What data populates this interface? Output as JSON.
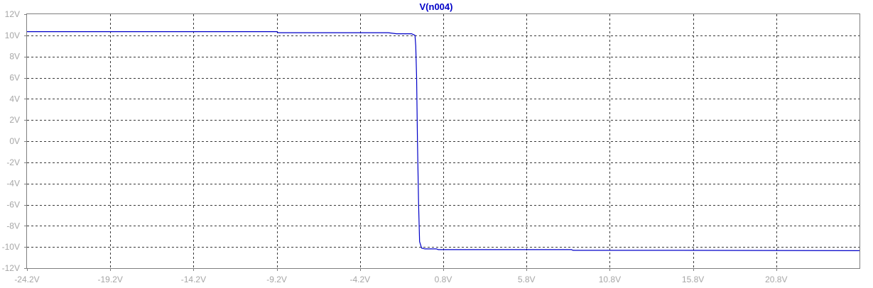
{
  "chart_data": {
    "type": "line",
    "title": "V(n004)",
    "xlabel": "",
    "ylabel": "",
    "xlim": [
      -24.2,
      25.8
    ],
    "ylim": [
      -12,
      12
    ],
    "x_ticks": [
      -24.2,
      -19.2,
      -14.2,
      -9.2,
      -4.2,
      0.8,
      5.8,
      10.8,
      15.8,
      20.8
    ],
    "x_tick_labels": [
      "-24.2V",
      "-19.2V",
      "-14.2V",
      "-9.2V",
      "-4.2V",
      "0.8V",
      "5.8V",
      "10.8V",
      "15.8V",
      "20.8V"
    ],
    "y_ticks": [
      12,
      10,
      8,
      6,
      4,
      2,
      0,
      -2,
      -4,
      -6,
      -8,
      -10,
      -12
    ],
    "y_tick_labels": [
      "12V",
      "10V",
      "8V",
      "6V",
      "4V",
      "2V",
      "0V",
      "-2V",
      "-4V",
      "-6V",
      "-8V",
      "-10V",
      "-12V"
    ],
    "grid": true,
    "series": [
      {
        "name": "V(n004)",
        "color": "#0000c8",
        "x": [
          -24.2,
          -14.2,
          -9.2,
          -9.1,
          -6.0,
          -2.5,
          -2.0,
          -1.1,
          -0.9,
          -0.85,
          -0.8,
          -0.75,
          -0.68,
          -0.62,
          -0.5,
          -0.3,
          0.0,
          0.4,
          0.5,
          3.0,
          8.5,
          8.6,
          15.0,
          25.8
        ],
        "y": [
          10.35,
          10.35,
          10.35,
          10.25,
          10.25,
          10.25,
          10.15,
          10.15,
          10.0,
          9.0,
          6.0,
          0.0,
          -6.0,
          -9.5,
          -10.1,
          -10.18,
          -10.18,
          -10.18,
          -10.25,
          -10.25,
          -10.25,
          -10.32,
          -10.32,
          -10.35
        ]
      }
    ]
  }
}
